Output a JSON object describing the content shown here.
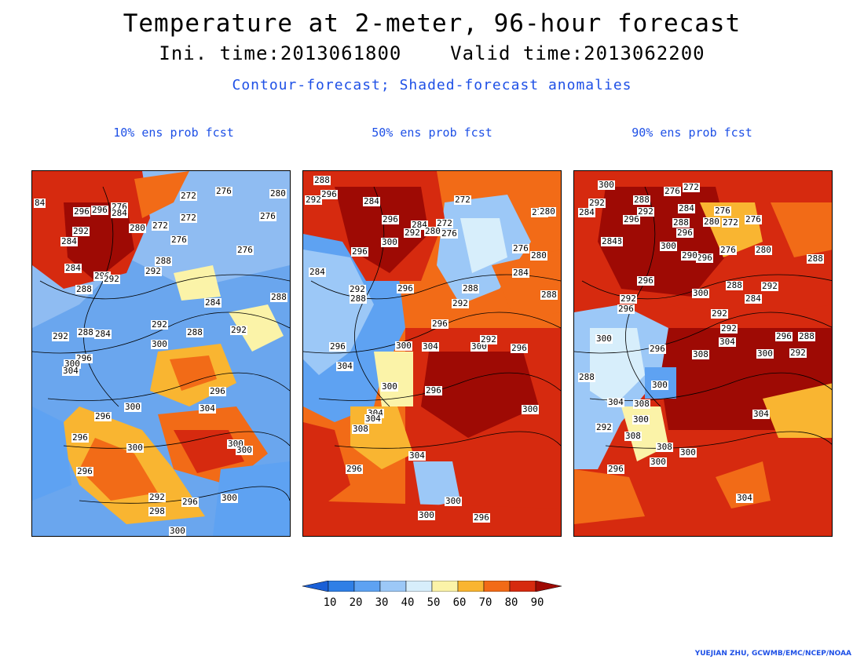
{
  "header": {
    "title": "Temperature at 2-meter, 96-hour forecast",
    "subtitle": "Ini. time:2013061800    Valid time:2013062200",
    "caption": "Contour-forecast; Shaded-forecast anomalies"
  },
  "panels": [
    {
      "title": "10% ens prob fcst",
      "contour_labels": [
        "84",
        "296",
        "296",
        "276",
        "284",
        "272",
        "276",
        "280",
        "272",
        "276",
        "292",
        "284",
        "280",
        "272",
        "276",
        "288",
        "276",
        "284",
        "296",
        "292",
        "292",
        "288",
        "284",
        "288",
        "292",
        "288",
        "292",
        "284",
        "288",
        "300",
        "292",
        "296",
        "300",
        "304",
        "296",
        "300",
        "296",
        "304",
        "296",
        "300",
        "300",
        "296",
        "300",
        "292",
        "296",
        "298",
        "300",
        "300"
      ]
    },
    {
      "title": "50% ens prob fcst",
      "contour_labels": [
        "288",
        "296",
        "292",
        "284",
        "272",
        "276",
        "280",
        "296",
        "284",
        "272",
        "280",
        "276",
        "296",
        "300",
        "292",
        "276",
        "280",
        "284",
        "288",
        "296",
        "288",
        "292",
        "288",
        "284",
        "296",
        "292",
        "296",
        "304",
        "300",
        "292",
        "296",
        "300",
        "304",
        "296",
        "304",
        "308",
        "304",
        "300",
        "304",
        "300",
        "296",
        "300",
        "300",
        "296"
      ]
    },
    {
      "title": "90% ens prob fcst",
      "contour_labels": [
        "300",
        "292",
        "276",
        "272",
        "284",
        "288",
        "292",
        "296",
        "276",
        "284",
        "280",
        "276",
        "288",
        "296",
        "272",
        "288",
        "300",
        "284",
        "296",
        "290",
        "276",
        "280",
        "296",
        "288",
        "288",
        "292",
        "292",
        "300",
        "284",
        "296",
        "292",
        "292",
        "296",
        "300",
        "288",
        "300",
        "304",
        "292",
        "296",
        "308",
        "300",
        "288",
        "304",
        "308",
        "304",
        "300",
        "292",
        "308",
        "308",
        "300",
        "304",
        "300",
        "296"
      ]
    }
  ],
  "colorbar": {
    "labels": [
      "10",
      "20",
      "30",
      "40",
      "50",
      "60",
      "70",
      "80",
      "90"
    ],
    "colors": [
      "#1a5fd6",
      "#2f7fe6",
      "#5ea2f2",
      "#9cc8f7",
      "#d7eefb",
      "#fbf3a8",
      "#f9b531",
      "#f26b17",
      "#d62a0f",
      "#9e0a04"
    ]
  },
  "credit": "YUEJIAN ZHU, GCWMB/EMC/NCEP/NOAA"
}
